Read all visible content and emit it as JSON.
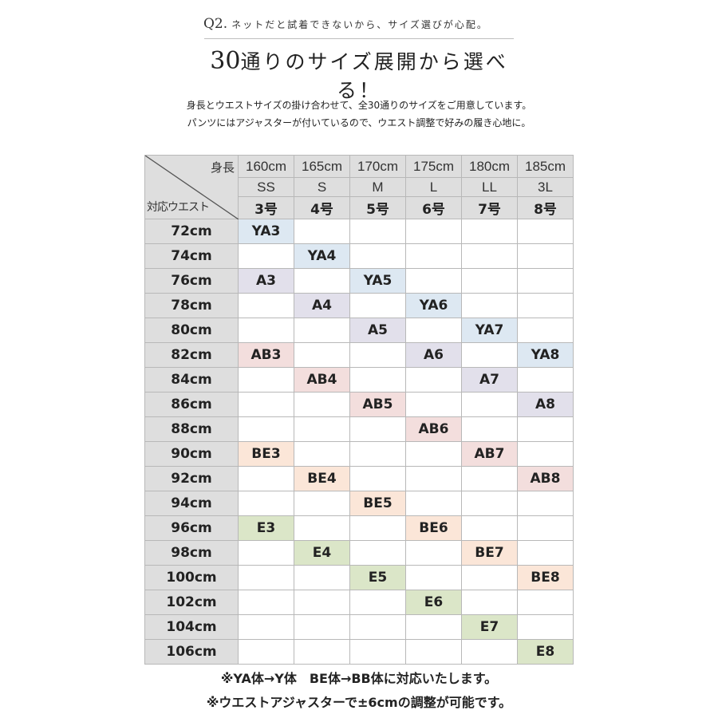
{
  "question": {
    "number": "Q2.",
    "text": "ネットだと試着できないから、サイズ選びが心配。"
  },
  "headline": {
    "number": "30",
    "text": "通りのサイズ展開から選べる！"
  },
  "description": {
    "line1": "身長とウエストサイズの掛け合わせて、全30通りのサイズをご用意しています。",
    "line2": "パンツにはアジャスターが付いているので、ウエスト調整で好みの履き心地に。"
  },
  "table": {
    "corner_top": "身長",
    "corner_bottom": "対応ウエスト",
    "heights": [
      "160cm",
      "165cm",
      "170cm",
      "175cm",
      "180cm",
      "185cm"
    ],
    "letter_sizes": [
      "SS",
      "S",
      "M",
      "L",
      "LL",
      "3L"
    ],
    "number_sizes": [
      "3号",
      "4号",
      "5号",
      "6号",
      "7号",
      "8号"
    ],
    "rows": [
      {
        "waist": "72cm",
        "cells": [
          "YA3",
          "",
          "",
          "",
          "",
          ""
        ]
      },
      {
        "waist": "74cm",
        "cells": [
          "",
          "YA4",
          "",
          "",
          "",
          ""
        ]
      },
      {
        "waist": "76cm",
        "cells": [
          "A3",
          "",
          "YA5",
          "",
          "",
          ""
        ]
      },
      {
        "waist": "78cm",
        "cells": [
          "",
          "A4",
          "",
          "YA6",
          "",
          ""
        ]
      },
      {
        "waist": "80cm",
        "cells": [
          "",
          "",
          "A5",
          "",
          "YA7",
          ""
        ]
      },
      {
        "waist": "82cm",
        "cells": [
          "AB3",
          "",
          "",
          "A6",
          "",
          "YA8"
        ]
      },
      {
        "waist": "84cm",
        "cells": [
          "",
          "AB4",
          "",
          "",
          "A7",
          ""
        ]
      },
      {
        "waist": "86cm",
        "cells": [
          "",
          "",
          "AB5",
          "",
          "",
          "A8"
        ]
      },
      {
        "waist": "88cm",
        "cells": [
          "",
          "",
          "",
          "AB6",
          "",
          ""
        ]
      },
      {
        "waist": "90cm",
        "cells": [
          "BE3",
          "",
          "",
          "",
          "AB7",
          ""
        ]
      },
      {
        "waist": "92cm",
        "cells": [
          "",
          "BE4",
          "",
          "",
          "",
          "AB8"
        ]
      },
      {
        "waist": "94cm",
        "cells": [
          "",
          "",
          "BE5",
          "",
          "",
          ""
        ]
      },
      {
        "waist": "96cm",
        "cells": [
          "E3",
          "",
          "",
          "BE6",
          "",
          ""
        ]
      },
      {
        "waist": "98cm",
        "cells": [
          "",
          "E4",
          "",
          "",
          "BE7",
          ""
        ]
      },
      {
        "waist": "100cm",
        "cells": [
          "",
          "",
          "E5",
          "",
          "",
          "BE8"
        ]
      },
      {
        "waist": "102cm",
        "cells": [
          "",
          "",
          "",
          "E6",
          "",
          ""
        ]
      },
      {
        "waist": "104cm",
        "cells": [
          "",
          "",
          "",
          "",
          "E7",
          ""
        ]
      },
      {
        "waist": "106cm",
        "cells": [
          "",
          "",
          "",
          "",
          "",
          "E8"
        ]
      }
    ],
    "category_colors": {
      "YA": "#dde8f2",
      "A": "#e2e0eb",
      "AB": "#f3dedd",
      "BE": "#fbe6d8",
      "E": "#dbe6c8"
    }
  },
  "notes": {
    "line1": "※YA体→Y体　BE体→BB体に対応いたします。",
    "line2": "※ウエストアジャスターで±6cmの調整が可能です。"
  }
}
